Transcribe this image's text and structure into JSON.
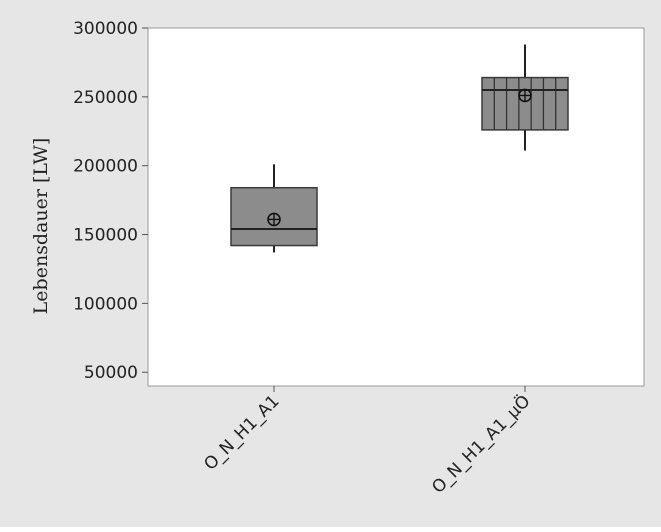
{
  "chart_data": {
    "type": "boxplot",
    "ylabel": "Lebensdauer [LW]",
    "ylim": [
      40000,
      300000
    ],
    "yticks": [
      50000,
      100000,
      150000,
      200000,
      250000,
      300000
    ],
    "grid": false,
    "legend": "none",
    "categories": [
      "O_N_H1_A1",
      "O_N_H1_A1_µÖ"
    ],
    "boxes": [
      {
        "category": "O_N_H1_A1",
        "whisker_low": 137000,
        "q1": 142000,
        "median": 154000,
        "mean": 161000,
        "q3": 184000,
        "whisker_high": 201000,
        "hatched": false
      },
      {
        "category": "O_N_H1_A1_µÖ",
        "whisker_low": 211000,
        "q1": 226000,
        "median": 255000,
        "mean": 251000,
        "q3": 264000,
        "whisker_high": 288000,
        "hatched": true
      }
    ],
    "colors": {
      "outer_background": "#e6e6e6",
      "plot_background": "#ffffff",
      "box_fill": "#8c8c8c",
      "box_stroke": "#3a3a3a"
    }
  }
}
